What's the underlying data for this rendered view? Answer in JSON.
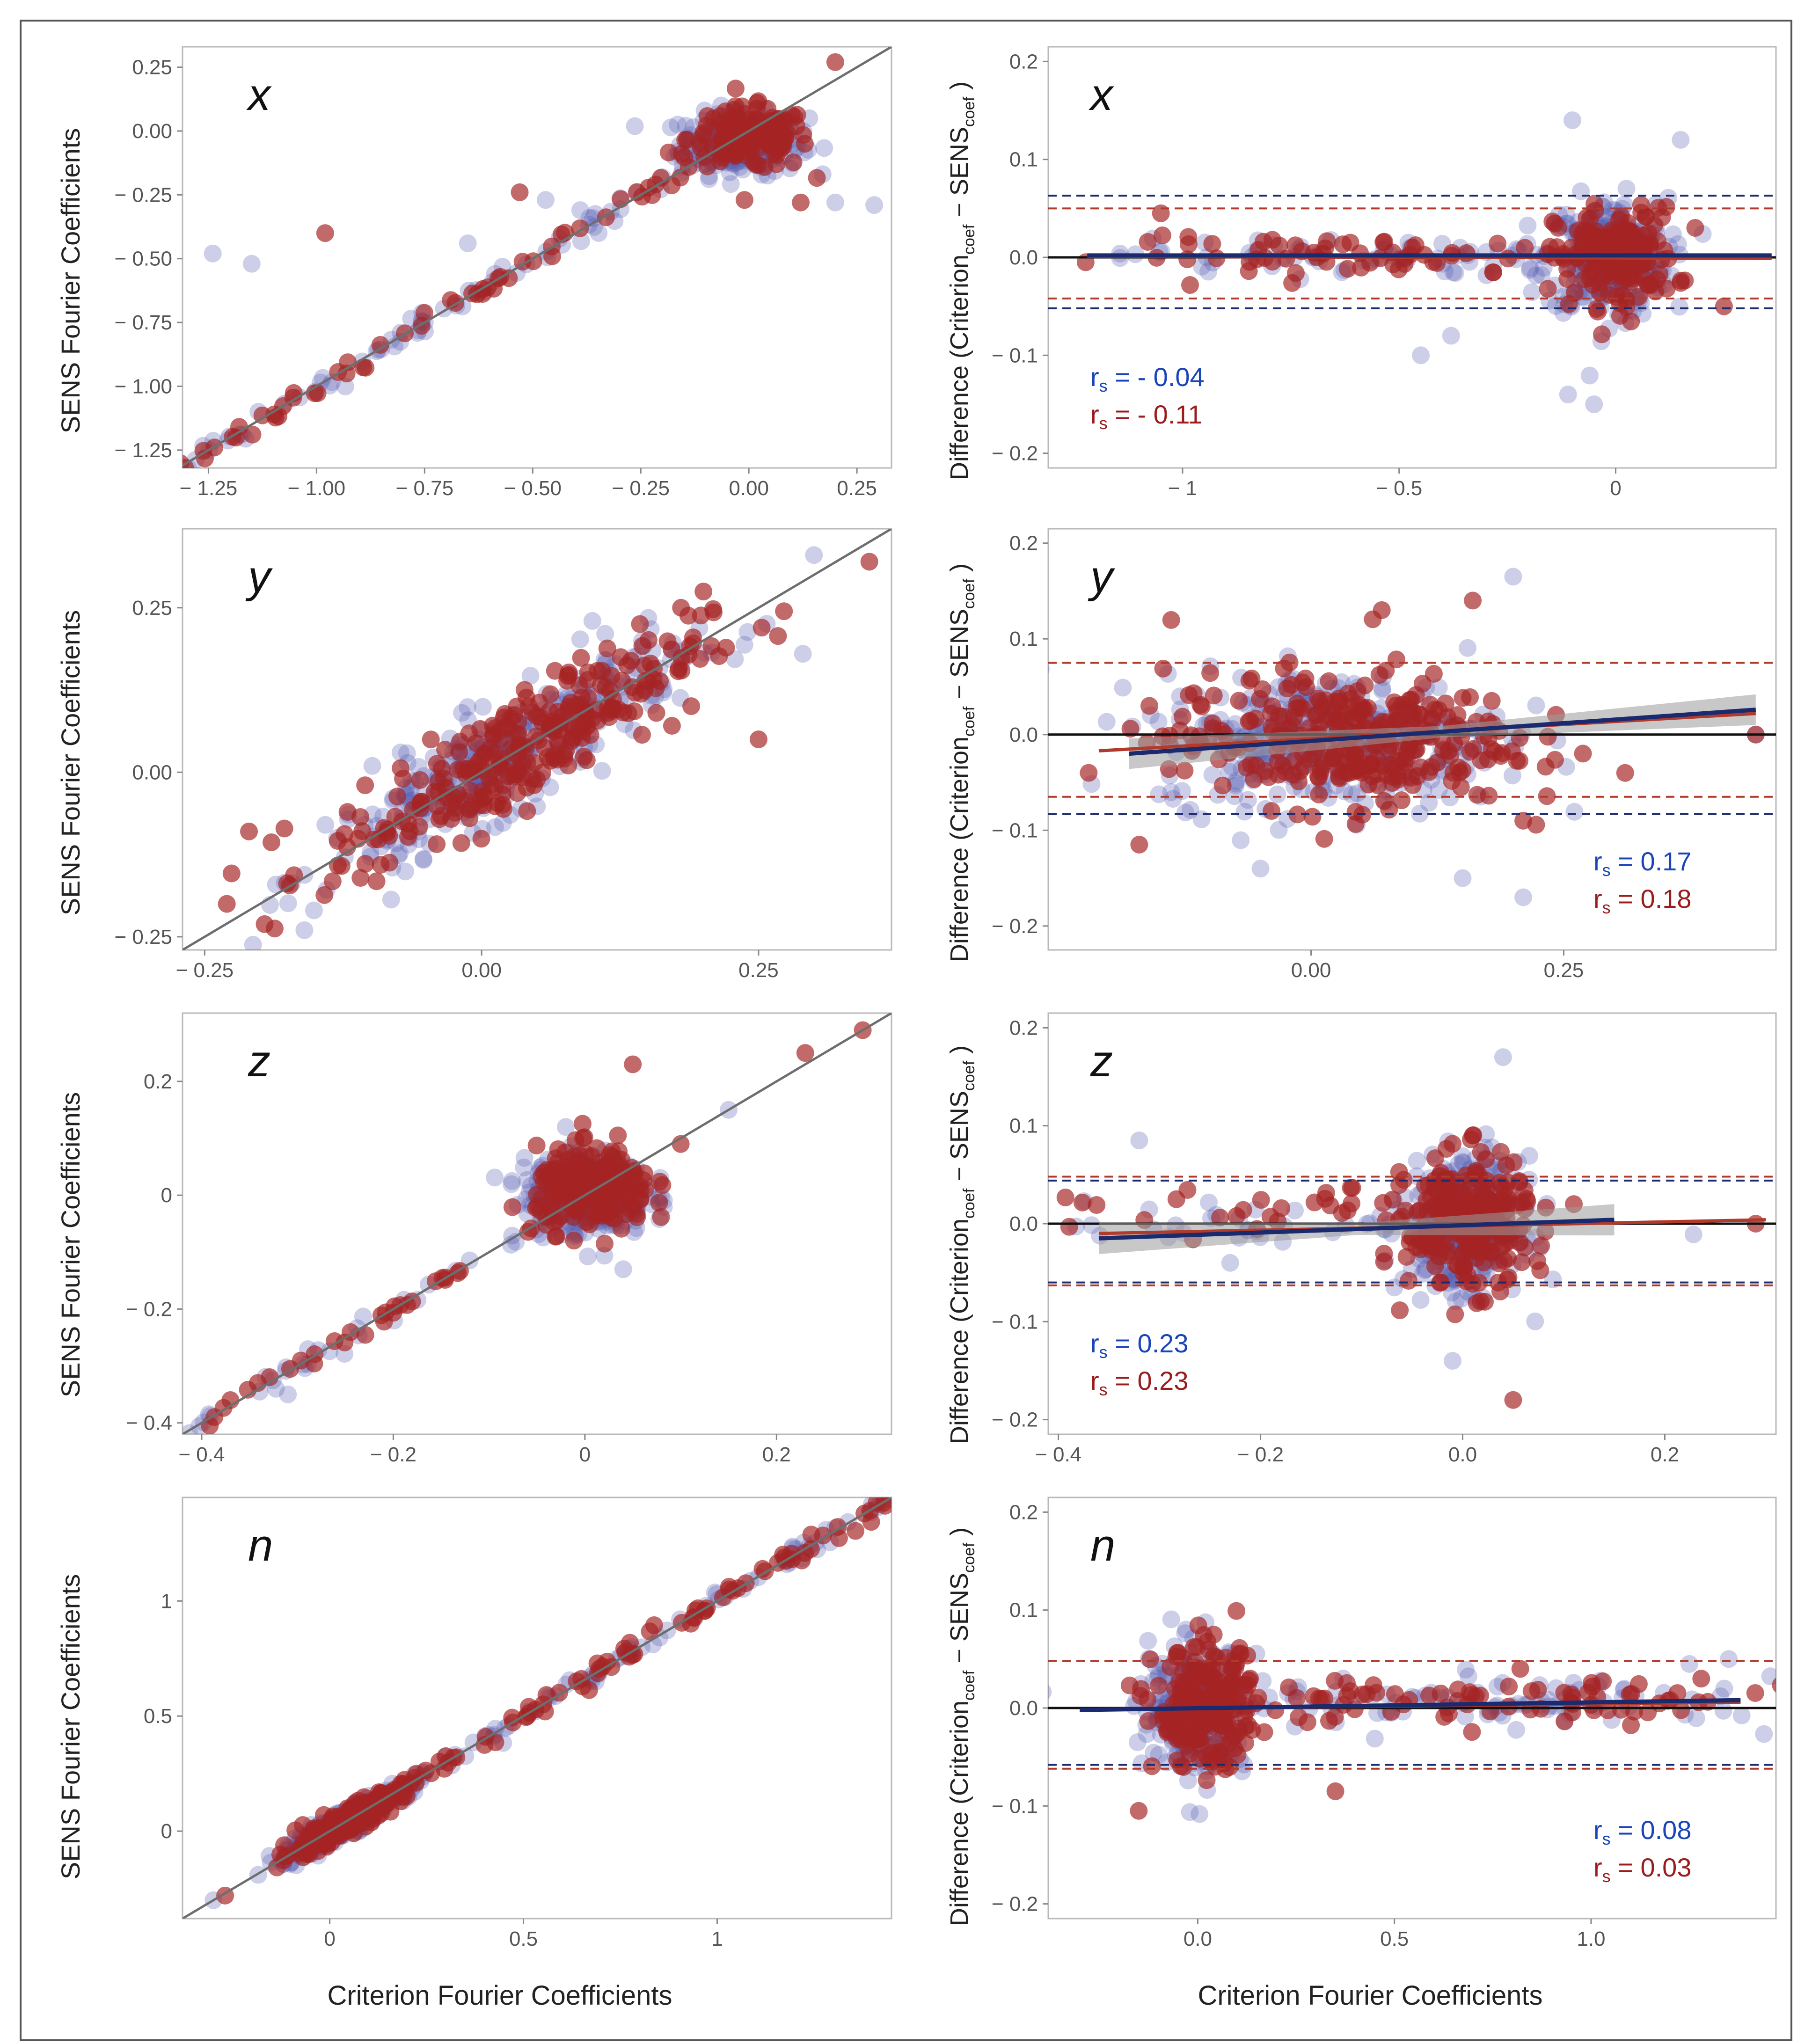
{
  "figure": {
    "x_axis_label": "Criterion Fourier Coefficients",
    "y_axis_label_left": "SENS Fourier Coefficients",
    "y_axis_label_right": "Difference (Criterion coef − SENS coef )",
    "y_axis_label_right_parts": [
      "Difference (Criterion",
      "coef",
      " − SENS",
      "coef",
      " )"
    ],
    "rs_label": "r",
    "rs_sub": "s",
    "colors": {
      "blue_points": "#5a5fb4",
      "red_points": "#a52424",
      "blue_text": "#1a45b8",
      "red_text": "#9a1c1c",
      "blue_line": "#1a2a6e",
      "red_line": "#b23a2a",
      "identity_line": "#6e6e6e",
      "frame": "#b8b8b8",
      "tick_text": "#555555",
      "ci_band": "#9a9a9a"
    }
  },
  "chart_data": [
    {
      "id": "x-scatter",
      "type": "scatter",
      "title": "x",
      "xlabel": "",
      "ylabel": "SENS Fourier Coefficients",
      "xlim": [
        -1.31,
        0.33
      ],
      "ylim": [
        -1.32,
        0.33
      ],
      "xticks": [
        -1.25,
        -1.0,
        -0.75,
        -0.5,
        -0.25,
        0.0,
        0.25
      ],
      "xtick_labels": [
        "− 1.25",
        "− 1.00",
        "− 0.75",
        "− 0.50",
        "− 0.25",
        "0.00",
        "0.25"
      ],
      "yticks": [
        -1.25,
        -1.0,
        -0.75,
        -0.5,
        -0.25,
        0.0,
        0.25
      ],
      "ytick_labels": [
        "− 1.25",
        "− 1.00",
        "− 0.75",
        "− 0.50",
        "− 0.25",
        "0.00",
        "0.25"
      ],
      "identity_line": true,
      "series": [
        {
          "name": "blue",
          "clusters": [
            {
              "x": -0.02,
              "y": -0.05,
              "sx": 0.07,
              "sy": 0.06,
              "n": 230
            }
          ],
          "diag_x": [
            -1.22,
            -0.9,
            -0.62,
            -0.3
          ],
          "diag_n": 70,
          "outliers": [
            [
              -1.24,
              -0.48
            ],
            [
              -1.15,
              -0.52
            ],
            [
              -0.65,
              -0.44
            ],
            [
              -0.47,
              -0.27
            ],
            [
              -0.39,
              -0.31
            ],
            [
              0.29,
              -0.29
            ],
            [
              0.2,
              -0.28
            ],
            [
              0.14,
              0.05
            ]
          ]
        },
        {
          "name": "red",
          "clusters": [
            {
              "x": 0.0,
              "y": -0.03,
              "sx": 0.07,
              "sy": 0.06,
              "n": 150
            }
          ],
          "diag_x": [
            -1.18,
            -0.92,
            -0.6,
            -0.3
          ],
          "diag_n": 55,
          "outliers": [
            [
              -0.98,
              -0.4
            ],
            [
              -0.53,
              -0.24
            ],
            [
              -0.01,
              -0.27
            ],
            [
              0.12,
              -0.28
            ],
            [
              0.2,
              0.27
            ]
          ]
        }
      ]
    },
    {
      "id": "x-diff",
      "type": "scatter",
      "title": "x",
      "xlabel": "",
      "ylabel": "Difference (Criterion coef − SENS coef )",
      "xlim": [
        -1.31,
        0.37
      ],
      "ylim": [
        -0.215,
        0.215
      ],
      "xticks": [
        -1.0,
        -0.5,
        0.0
      ],
      "xtick_labels": [
        "− 1",
        "− 0.5",
        "0"
      ],
      "yticks": [
        -0.2,
        -0.1,
        0.0,
        0.1,
        0.2
      ],
      "ytick_labels": [
        "− 0.2",
        "− 0.1",
        "0.0",
        "0.1",
        "0.2"
      ],
      "hlines_blue": [
        0.063,
        -0.052
      ],
      "hlines_red": [
        0.05,
        -0.042
      ],
      "fit_blue": [
        [
          -1.22,
          0.002
        ],
        [
          0.36,
          0.002
        ]
      ],
      "fit_red": [
        [
          -1.22,
          0.001
        ],
        [
          0.36,
          -0.001
        ]
      ],
      "rs_position": "bottom-left",
      "rs_values": [
        {
          "series": "blue",
          "value": "- 0.04"
        },
        {
          "series": "red",
          "value": "- 0.11"
        }
      ],
      "series": [
        {
          "name": "blue",
          "clusters": [
            {
              "x": -0.02,
              "y": 0.0,
              "sx": 0.07,
              "sy": 0.03,
              "n": 260
            },
            {
              "x": -0.6,
              "y": 0.0,
              "sx": 0.28,
              "sy": 0.01,
              "n": 70
            }
          ],
          "outliers": [
            [
              -0.1,
              0.14
            ],
            [
              0.15,
              0.12
            ],
            [
              -0.11,
              -0.14
            ],
            [
              -0.05,
              -0.15
            ],
            [
              -0.45,
              -0.1
            ],
            [
              -0.38,
              -0.08
            ]
          ]
        },
        {
          "name": "red",
          "clusters": [
            {
              "x": 0.0,
              "y": 0.0,
              "sx": 0.07,
              "sy": 0.025,
              "n": 170
            },
            {
              "x": -0.6,
              "y": 0.0,
              "sx": 0.28,
              "sy": 0.01,
              "n": 60
            }
          ],
          "outliers": [
            [
              -1.05,
              0.045
            ],
            [
              0.25,
              -0.05
            ]
          ]
        }
      ]
    },
    {
      "id": "y-scatter",
      "type": "scatter",
      "title": "y",
      "xlabel": "",
      "ylabel": "SENS Fourier Coefficients",
      "xlim": [
        -0.27,
        0.37
      ],
      "ylim": [
        -0.27,
        0.37
      ],
      "xticks": [
        -0.25,
        0.0,
        0.25
      ],
      "xtick_labels": [
        "− 0.25",
        "0.00",
        "0.25"
      ],
      "yticks": [
        -0.25,
        0.0,
        0.25
      ],
      "ytick_labels": [
        "− 0.25",
        "0.00",
        "0.25"
      ],
      "identity_line": true,
      "series": [
        {
          "name": "blue",
          "clusters": [
            {
              "x": 0.02,
              "y": 0.02,
              "sx": 0.08,
              "sy": 0.085,
              "rho": 0.88,
              "n": 330
            }
          ],
          "outliers": [
            [
              -0.16,
              -0.24
            ],
            [
              0.1,
              0.23
            ],
            [
              0.3,
              0.33
            ],
            [
              0.29,
              0.18
            ]
          ]
        },
        {
          "name": "red",
          "clusters": [
            {
              "x": 0.03,
              "y": 0.03,
              "sx": 0.085,
              "sy": 0.09,
              "rho": 0.88,
              "n": 290
            }
          ],
          "outliers": [
            [
              -0.23,
              -0.2
            ],
            [
              -0.21,
              -0.09
            ],
            [
              0.35,
              0.32
            ],
            [
              0.25,
              0.05
            ],
            [
              0.18,
              0.25
            ]
          ]
        }
      ]
    },
    {
      "id": "y-diff",
      "type": "scatter",
      "title": "y",
      "xlabel": "",
      "ylabel": "Difference (Criterion coef − SENS coef )",
      "xlim": [
        -0.26,
        0.46
      ],
      "ylim": [
        -0.225,
        0.215
      ],
      "xticks": [
        0.0,
        0.25
      ],
      "xtick_labels": [
        "0.00",
        "0.25"
      ],
      "yticks": [
        -0.2,
        -0.1,
        0.0,
        0.1,
        0.2
      ],
      "ytick_labels": [
        "− 0.2",
        "− 0.1",
        "0.0",
        "0.1",
        "0.2"
      ],
      "hlines_blue": [
        0.075,
        -0.083
      ],
      "hlines_red": [
        0.075,
        -0.065
      ],
      "fit_blue": [
        [
          -0.18,
          -0.02
        ],
        [
          0.44,
          0.026
        ]
      ],
      "fit_red": [
        [
          -0.21,
          -0.017
        ],
        [
          0.44,
          0.022
        ]
      ],
      "ci_band": true,
      "rs_position": "bottom-right",
      "rs_values": [
        {
          "series": "blue",
          "value": "0.17"
        },
        {
          "series": "red",
          "value": "0.18"
        }
      ],
      "series": [
        {
          "name": "blue",
          "clusters": [
            {
              "x": 0.02,
              "y": -0.005,
              "sx": 0.085,
              "sy": 0.035,
              "n": 360
            }
          ],
          "outliers": [
            [
              0.15,
              -0.15
            ],
            [
              0.21,
              -0.17
            ],
            [
              0.2,
              0.165
            ],
            [
              0.44,
              0.0
            ],
            [
              -0.05,
              -0.14
            ]
          ]
        },
        {
          "name": "red",
          "clusters": [
            {
              "x": 0.03,
              "y": -0.005,
              "sx": 0.085,
              "sy": 0.035,
              "n": 310
            }
          ],
          "outliers": [
            [
              -0.22,
              -0.04
            ],
            [
              -0.17,
              -0.115
            ],
            [
              0.21,
              -0.09
            ],
            [
              0.16,
              0.14
            ],
            [
              0.07,
              0.13
            ],
            [
              0.44,
              0.0
            ],
            [
              -0.16,
              0.03
            ]
          ]
        }
      ]
    },
    {
      "id": "z-scatter",
      "type": "scatter",
      "title": "z",
      "xlabel": "",
      "ylabel": "SENS Fourier Coefficients",
      "xlim": [
        -0.42,
        0.32
      ],
      "ylim": [
        -0.42,
        0.32
      ],
      "xticks": [
        -0.4,
        -0.2,
        0.0,
        0.2
      ],
      "xtick_labels": [
        "− 0.4",
        "− 0.2",
        "0",
        "0.2"
      ],
      "yticks": [
        -0.4,
        -0.2,
        0.0,
        0.2
      ],
      "ytick_labels": [
        "− 0.4",
        "− 0.2",
        "0",
        "0.2"
      ],
      "identity_line": true,
      "series": [
        {
          "name": "blue",
          "clusters": [
            {
              "x": 0.0,
              "y": 0.0,
              "sx": 0.032,
              "sy": 0.035,
              "n": 300
            }
          ],
          "diag_x": [
            -0.36,
            -0.3,
            -0.2,
            -0.12
          ],
          "diag_n": 30,
          "outliers": [
            [
              -0.31,
              -0.35
            ],
            [
              0.04,
              -0.13
            ],
            [
              -0.02,
              0.12
            ],
            [
              0.15,
              0.15
            ]
          ]
        },
        {
          "name": "red",
          "clusters": [
            {
              "x": 0.01,
              "y": 0.01,
              "sx": 0.03,
              "sy": 0.035,
              "n": 240
            }
          ],
          "diag_x": [
            -0.34,
            -0.28,
            -0.2,
            -0.12
          ],
          "diag_n": 30,
          "outliers": [
            [
              0.05,
              0.23
            ],
            [
              0.23,
              0.25
            ],
            [
              0.29,
              0.29
            ],
            [
              -0.37,
              -0.36
            ],
            [
              0.1,
              0.09
            ]
          ]
        }
      ]
    },
    {
      "id": "z-diff",
      "type": "scatter",
      "title": "z",
      "xlabel": "",
      "ylabel": "Difference (Criterion coef − SENS coef )",
      "xlim": [
        -0.41,
        0.31
      ],
      "ylim": [
        -0.215,
        0.215
      ],
      "xticks": [
        -0.4,
        -0.2,
        0.0,
        0.2
      ],
      "xtick_labels": [
        "− 0.4",
        "− 0.2",
        "0.0",
        "0.2"
      ],
      "yticks": [
        -0.2,
        -0.1,
        0.0,
        0.1,
        0.2
      ],
      "ytick_labels": [
        "− 0.2",
        "− 0.1",
        "0.0",
        "0.1",
        "0.2"
      ],
      "hlines_blue": [
        0.044,
        -0.06
      ],
      "hlines_red": [
        0.048,
        -0.063
      ],
      "fit_blue": [
        [
          -0.36,
          -0.015
        ],
        [
          0.15,
          0.004
        ]
      ],
      "fit_red": [
        [
          -0.36,
          -0.01
        ],
        [
          0.3,
          0.004
        ]
      ],
      "ci_band": true,
      "rs_position": "bottom-left",
      "rs_values": [
        {
          "series": "blue",
          "value": "0.23"
        },
        {
          "series": "red",
          "value": "0.23"
        }
      ],
      "series": [
        {
          "name": "blue",
          "clusters": [
            {
              "x": 0.0,
              "y": 0.0,
              "sx": 0.028,
              "sy": 0.033,
              "n": 320
            },
            {
              "x": -0.2,
              "y": 0.0,
              "sx": 0.1,
              "sy": 0.012,
              "n": 30
            }
          ],
          "outliers": [
            [
              -0.32,
              0.085
            ],
            [
              0.04,
              0.17
            ],
            [
              -0.01,
              -0.14
            ],
            [
              -0.23,
              -0.04
            ]
          ]
        },
        {
          "name": "red",
          "clusters": [
            {
              "x": 0.005,
              "y": 0.0,
              "sx": 0.03,
              "sy": 0.033,
              "n": 260
            },
            {
              "x": -0.18,
              "y": 0.01,
              "sx": 0.1,
              "sy": 0.012,
              "n": 30
            }
          ],
          "outliers": [
            [
              0.05,
              -0.18
            ],
            [
              0.01,
              0.09
            ],
            [
              0.29,
              0.0
            ],
            [
              0.11,
              0.02
            ]
          ]
        }
      ]
    },
    {
      "id": "n-scatter",
      "type": "scatter",
      "title": "n",
      "xlabel": "Criterion Fourier Coefficients",
      "ylabel": "SENS Fourier Coefficients",
      "xlim": [
        -0.38,
        1.45
      ],
      "ylim": [
        -0.38,
        1.45
      ],
      "xticks": [
        0.0,
        0.5,
        1.0
      ],
      "xtick_labels": [
        "0",
        "0.5",
        "1"
      ],
      "yticks": [
        0.0,
        0.5,
        1.0
      ],
      "ytick_labels": [
        "0",
        "0.5",
        "1"
      ],
      "identity_line": true,
      "series": [
        {
          "name": "blue",
          "clusters": [
            {
              "x": 0.02,
              "y": 0.02,
              "sx": 0.08,
              "sy": 0.08,
              "rho": 0.93,
              "n": 260
            }
          ],
          "diag_x": [
            0.15,
            0.35,
            0.6,
            0.85,
            1.1,
            1.35
          ],
          "diag_n": 100,
          "outliers": [
            [
              -0.3,
              -0.3
            ]
          ]
        },
        {
          "name": "red",
          "clusters": [
            {
              "x": 0.03,
              "y": 0.03,
              "sx": 0.08,
              "sy": 0.08,
              "rho": 0.93,
              "n": 200
            }
          ],
          "diag_x": [
            0.15,
            0.35,
            0.6,
            0.85,
            1.1,
            1.35
          ],
          "diag_n": 90,
          "outliers": [
            [
              -0.27,
              -0.28
            ],
            [
              1.38,
              1.38
            ]
          ]
        }
      ]
    },
    {
      "id": "n-diff",
      "type": "scatter",
      "title": "n",
      "xlabel": "Criterion Fourier Coefficients",
      "ylabel": "Difference (Criterion coef − SENS coef )",
      "xlim": [
        -0.38,
        1.47
      ],
      "ylim": [
        -0.215,
        0.215
      ],
      "xticks": [
        0.0,
        0.5,
        1.0
      ],
      "xtick_labels": [
        "0.0",
        "0.5",
        "1.0"
      ],
      "yticks": [
        -0.2,
        -0.1,
        0.0,
        0.1,
        0.2
      ],
      "ytick_labels": [
        "− 0.2",
        "− 0.1",
        "0.0",
        "0.1",
        "0.2"
      ],
      "hlines_blue": [
        -0.058
      ],
      "hlines_red": [
        0.048,
        -0.062
      ],
      "fit_blue": [
        [
          -0.3,
          -0.002
        ],
        [
          1.38,
          0.008
        ]
      ],
      "fit_red": [
        [
          -0.3,
          -0.002
        ],
        [
          1.38,
          0.006
        ]
      ],
      "rs_position": "bottom-right",
      "rs_values": [
        {
          "series": "blue",
          "value": "0.08"
        },
        {
          "series": "red",
          "value": "0.03"
        }
      ],
      "series": [
        {
          "name": "blue",
          "clusters": [
            {
              "x": 0.0,
              "y": 0.0,
              "sx": 0.06,
              "sy": 0.032,
              "n": 280
            },
            {
              "x": 0.75,
              "y": 0.005,
              "sx": 0.38,
              "sy": 0.013,
              "n": 90
            }
          ],
          "outliers": [
            [
              1.25,
              0.045
            ],
            [
              1.35,
              0.05
            ],
            [
              -0.03,
              0.08
            ]
          ]
        },
        {
          "name": "red",
          "clusters": [
            {
              "x": 0.02,
              "y": 0.0,
              "sx": 0.065,
              "sy": 0.03,
              "n": 230
            },
            {
              "x": 0.75,
              "y": 0.005,
              "sx": 0.38,
              "sy": 0.013,
              "n": 80
            }
          ],
          "outliers": [
            [
              -0.15,
              -0.105
            ],
            [
              0.35,
              -0.085
            ],
            [
              0.82,
              0.04
            ],
            [
              1.28,
              0.03
            ]
          ]
        }
      ]
    }
  ]
}
